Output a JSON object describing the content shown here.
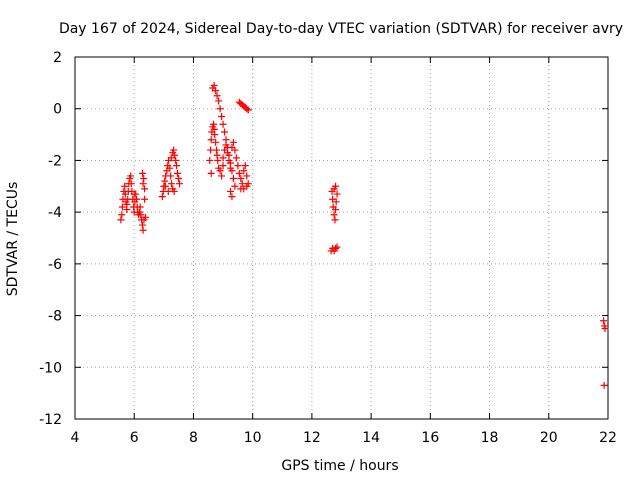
{
  "chart_data": {
    "type": "scatter",
    "title": "Day 167 of 2024, Sidereal Day-to-day VTEC variation (SDTVAR) for receiver avry",
    "xlabel": "GPS time / hours",
    "ylabel": "SDTVAR / TECUs",
    "xlim": [
      4,
      22
    ],
    "ylim": [
      -12,
      2
    ],
    "xticks": [
      "4",
      "6",
      "8",
      "10",
      "12",
      "14",
      "16",
      "18",
      "20",
      "22"
    ],
    "yticks": [
      "-12",
      "-10",
      "-8",
      "-6",
      "-4",
      "-2",
      "0",
      "2"
    ],
    "grid": true,
    "marker": "+",
    "series_color": "#ff0000",
    "series": [
      {
        "name": "SDTVAR",
        "points": [
          [
            5.55,
            -4.3
          ],
          [
            5.58,
            -4.1
          ],
          [
            5.6,
            -3.8
          ],
          [
            5.62,
            -3.5
          ],
          [
            5.65,
            -3.2
          ],
          [
            5.68,
            -3.0
          ],
          [
            5.7,
            -3.3
          ],
          [
            5.72,
            -3.6
          ],
          [
            5.75,
            -3.9
          ],
          [
            5.78,
            -3.5
          ],
          [
            5.8,
            -3.2
          ],
          [
            5.82,
            -2.9
          ],
          [
            5.85,
            -2.7
          ],
          [
            5.88,
            -2.6
          ],
          [
            5.9,
            -2.9
          ],
          [
            5.92,
            -3.2
          ],
          [
            5.95,
            -3.5
          ],
          [
            5.98,
            -3.8
          ],
          [
            6.0,
            -4.0
          ],
          [
            6.02,
            -3.6
          ],
          [
            6.05,
            -3.3
          ],
          [
            6.08,
            -3.5
          ],
          [
            6.1,
            -3.8
          ],
          [
            6.12,
            -4.0
          ],
          [
            6.15,
            -4.1
          ],
          [
            6.18,
            -4.0
          ],
          [
            6.2,
            -3.8
          ],
          [
            6.22,
            -4.1
          ],
          [
            6.25,
            -4.3
          ],
          [
            6.28,
            -4.5
          ],
          [
            6.3,
            -4.7
          ],
          [
            6.33,
            -4.3
          ],
          [
            6.35,
            -3.5
          ],
          [
            6.3,
            -2.9
          ],
          [
            6.28,
            -2.5
          ],
          [
            6.32,
            -2.7
          ],
          [
            6.35,
            -3.1
          ],
          [
            6.38,
            -4.2
          ],
          [
            6.0,
            -3.3
          ],
          [
            5.75,
            -3.7
          ],
          [
            6.95,
            -3.4
          ],
          [
            6.98,
            -3.2
          ],
          [
            7.0,
            -3.0
          ],
          [
            7.03,
            -2.8
          ],
          [
            7.06,
            -2.6
          ],
          [
            7.1,
            -2.4
          ],
          [
            7.13,
            -2.2
          ],
          [
            7.16,
            -2.0
          ],
          [
            7.2,
            -2.3
          ],
          [
            7.23,
            -2.6
          ],
          [
            7.26,
            -2.9
          ],
          [
            7.3,
            -3.1
          ],
          [
            7.25,
            -1.9
          ],
          [
            7.3,
            -1.7
          ],
          [
            7.33,
            -1.6
          ],
          [
            7.36,
            -1.8
          ],
          [
            7.4,
            -2.0
          ],
          [
            7.43,
            -2.2
          ],
          [
            7.46,
            -2.5
          ],
          [
            7.5,
            -2.7
          ],
          [
            7.53,
            -2.9
          ],
          [
            7.35,
            -3.2
          ],
          [
            7.15,
            -3.2
          ],
          [
            7.05,
            -3.0
          ],
          [
            8.55,
            -2.0
          ],
          [
            8.58,
            -1.6
          ],
          [
            8.6,
            -1.2
          ],
          [
            8.62,
            -0.9
          ],
          [
            8.65,
            -0.7
          ],
          [
            8.68,
            -0.6
          ],
          [
            8.7,
            -0.8
          ],
          [
            8.72,
            -1.0
          ],
          [
            8.75,
            -1.3
          ],
          [
            8.78,
            -1.6
          ],
          [
            8.8,
            -1.8
          ],
          [
            8.82,
            -2.0
          ],
          [
            8.85,
            -2.3
          ],
          [
            8.6,
            -2.5
          ],
          [
            8.65,
            0.8
          ],
          [
            8.7,
            0.9
          ],
          [
            8.75,
            0.7
          ],
          [
            8.8,
            0.5
          ],
          [
            8.85,
            0.3
          ],
          [
            8.9,
            0.0
          ],
          [
            8.95,
            -0.3
          ],
          [
            9.0,
            -0.6
          ],
          [
            9.05,
            -0.9
          ],
          [
            9.1,
            -1.2
          ],
          [
            9.15,
            -1.5
          ],
          [
            9.2,
            -1.8
          ],
          [
            9.25,
            -2.1
          ],
          [
            9.3,
            -2.4
          ],
          [
            9.35,
            -2.7
          ],
          [
            9.4,
            -3.0
          ],
          [
            9.0,
            -1.9
          ],
          [
            9.05,
            -1.6
          ],
          [
            9.1,
            -1.4
          ],
          [
            9.15,
            -1.7
          ],
          [
            9.2,
            -2.0
          ],
          [
            9.25,
            -2.3
          ],
          [
            9.3,
            -1.5
          ],
          [
            9.35,
            -1.3
          ],
          [
            9.4,
            -1.6
          ],
          [
            9.45,
            -1.9
          ],
          [
            9.5,
            -2.2
          ],
          [
            9.55,
            -2.5
          ],
          [
            9.6,
            -2.7
          ],
          [
            9.65,
            -2.9
          ],
          [
            9.7,
            -2.4
          ],
          [
            9.75,
            -2.2
          ],
          [
            9.8,
            -2.6
          ],
          [
            9.85,
            -2.9
          ],
          [
            9.25,
            -3.2
          ],
          [
            9.3,
            -3.4
          ],
          [
            8.9,
            -2.4
          ],
          [
            8.95,
            -2.6
          ],
          [
            9.0,
            -2.2
          ],
          [
            9.6,
            -3.1
          ],
          [
            9.7,
            -3.1
          ],
          [
            9.8,
            -3.0
          ],
          [
            9.55,
            0.25
          ],
          [
            9.6,
            0.2
          ],
          [
            9.65,
            0.15
          ],
          [
            9.7,
            0.1
          ],
          [
            9.75,
            0.05
          ],
          [
            9.8,
            0.0
          ],
          [
            9.85,
            -0.05
          ],
          [
            12.65,
            -5.5
          ],
          [
            12.7,
            -5.4
          ],
          [
            12.75,
            -5.5
          ],
          [
            12.8,
            -5.4
          ],
          [
            12.85,
            -5.35
          ],
          [
            12.68,
            -3.2
          ],
          [
            12.7,
            -3.5
          ],
          [
            12.72,
            -3.8
          ],
          [
            12.75,
            -4.1
          ],
          [
            12.78,
            -4.3
          ],
          [
            12.8,
            -3.9
          ],
          [
            12.82,
            -3.6
          ],
          [
            12.85,
            -3.3
          ],
          [
            12.8,
            -3.0
          ],
          [
            12.75,
            -3.1
          ],
          [
            21.85,
            -8.2
          ],
          [
            21.88,
            -8.4
          ],
          [
            21.9,
            -8.5
          ],
          [
            21.87,
            -10.7
          ]
        ]
      }
    ]
  }
}
